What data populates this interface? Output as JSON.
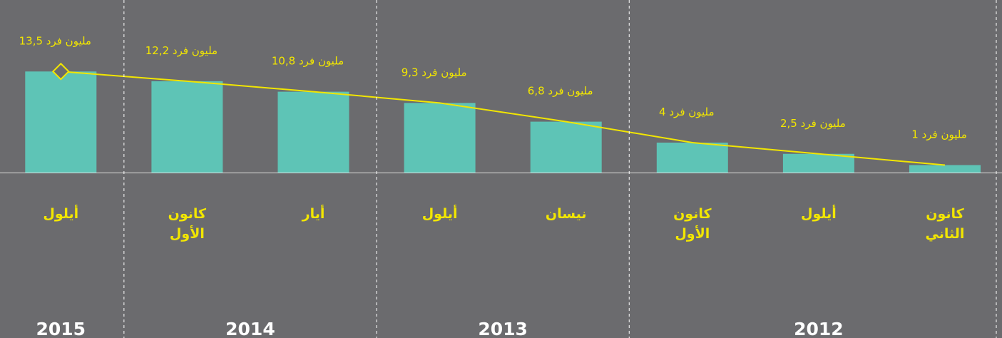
{
  "chart_data": {
    "type": "bar",
    "categories": [
      "كانون الثاني",
      "أيلول",
      "كانون الأول",
      "نيسان",
      "أيلول",
      "أيار",
      "كانون الأول",
      "أيلول"
    ],
    "values": [
      1,
      2.5,
      4,
      6.8,
      9.3,
      10.8,
      12.2,
      13.5
    ],
    "value_labels": [
      "1 مليون فرد",
      "2,5 مليون فرد",
      "4 مليون فرد",
      "6,8 مليون فرد",
      "9,3 مليون فرد",
      "10,8 مليون فرد",
      "12,2 مليون فرد",
      "13,5 مليون فرد"
    ],
    "groups": [
      {
        "label": "2012",
        "span": 3
      },
      {
        "label": "2013",
        "span": 2
      },
      {
        "label": "2014",
        "span": 2
      },
      {
        "label": "2015",
        "span": 1
      }
    ],
    "color": "#5ec4b6",
    "line_color": "#f2e600",
    "ylim": [
      0,
      14
    ]
  }
}
